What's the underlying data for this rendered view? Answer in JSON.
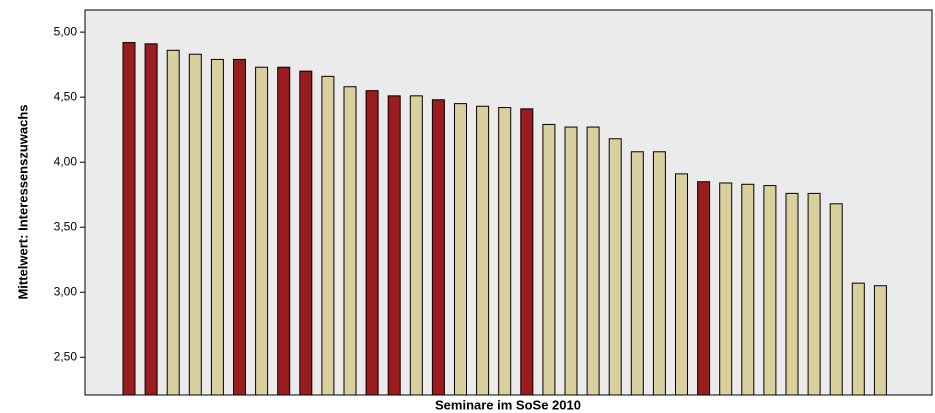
{
  "chart_data": {
    "type": "bar",
    "xlabel": "Seminare im SoSe 2010",
    "ylabel": "Mittelwert: Interessenszuwachs",
    "categories": [
      null,
      null,
      null,
      null,
      null,
      null,
      null,
      null,
      null,
      null,
      null,
      null,
      null,
      null,
      null,
      null,
      null,
      null,
      null,
      null,
      null,
      null,
      null,
      null,
      null,
      null,
      null,
      null,
      null,
      null,
      null,
      null,
      null,
      null,
      null
    ],
    "values": [
      4.92,
      4.91,
      4.86,
      4.83,
      4.79,
      4.79,
      4.73,
      4.73,
      4.7,
      4.66,
      4.58,
      4.55,
      4.51,
      4.51,
      4.48,
      4.45,
      4.43,
      4.42,
      4.41,
      4.29,
      4.27,
      4.27,
      4.18,
      4.08,
      4.08,
      3.91,
      3.85,
      3.84,
      3.83,
      3.82,
      3.76,
      3.76,
      3.68,
      3.07,
      3.05
    ],
    "colors": [
      "#9b1c1f",
      "#9b1c1f",
      "#d9d09e",
      "#d9d09e",
      "#d9d09e",
      "#9b1c1f",
      "#d9d09e",
      "#9b1c1f",
      "#9b1c1f",
      "#d9d09e",
      "#d9d09e",
      "#9b1c1f",
      "#9b1c1f",
      "#d9d09e",
      "#9b1c1f",
      "#d9d09e",
      "#d9d09e",
      "#d9d09e",
      "#9b1c1f",
      "#d9d09e",
      "#d9d09e",
      "#d9d09e",
      "#d9d09e",
      "#d9d09e",
      "#d9d09e",
      "#d9d09e",
      "#9b1c1f",
      "#d9d09e",
      "#d9d09e",
      "#d9d09e",
      "#d9d09e",
      "#d9d09e",
      "#d9d09e",
      "#d9d09e",
      "#d9d09e"
    ],
    "ylim": [
      2.21,
      5.17
    ],
    "yticks": [
      {
        "value": 2.5,
        "label": "2,50"
      },
      {
        "value": 3,
        "label": "3,00"
      },
      {
        "value": 3.5,
        "label": "3,50"
      },
      {
        "value": 4,
        "label": "4,00"
      },
      {
        "value": 4.5,
        "label": "4,50"
      },
      {
        "value": 5,
        "label": "5,00"
      }
    ],
    "grid": false
  }
}
